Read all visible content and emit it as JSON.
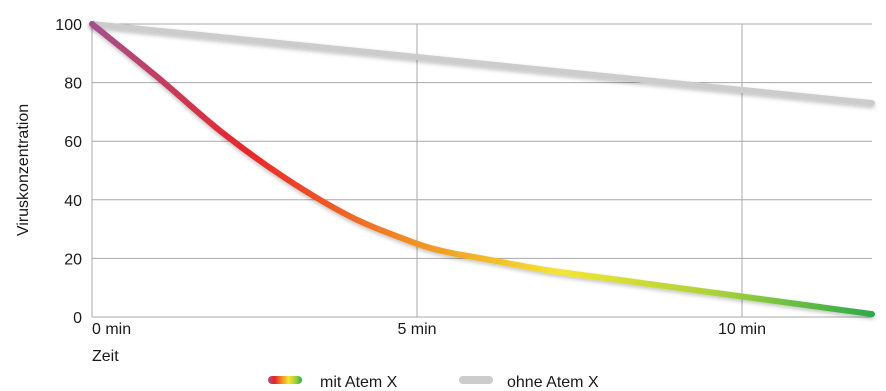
{
  "chart_data": {
    "type": "line",
    "xlabel": "Zeit",
    "ylabel": "Viruskonzentration",
    "xlim": [
      0,
      12
    ],
    "ylim": [
      0,
      100
    ],
    "x_ticks": [
      {
        "value": 0,
        "label": "0 min"
      },
      {
        "value": 5,
        "label": "5 min"
      },
      {
        "value": 10,
        "label": "10 min"
      }
    ],
    "y_ticks": [
      0,
      20,
      40,
      60,
      80,
      100
    ],
    "grid": true,
    "legend_position": "bottom-center",
    "series": [
      {
        "name": "mit Atem X",
        "style": "gradient",
        "gradient_colors": [
          "#a4508c",
          "#e8262a",
          "#f08a24",
          "#f5e531",
          "#a9d13a",
          "#2eaa4a"
        ],
        "x": [
          0,
          1,
          2,
          3,
          4,
          5,
          5.5,
          6,
          7,
          8,
          9,
          10,
          11,
          12
        ],
        "y": [
          100,
          82,
          63,
          47,
          34,
          25,
          22,
          20,
          16,
          13,
          10,
          7,
          4,
          1
        ]
      },
      {
        "name": "ohne Atem X",
        "color": "#cccccc",
        "x": [
          0,
          12
        ],
        "y": [
          100,
          73
        ]
      }
    ]
  }
}
